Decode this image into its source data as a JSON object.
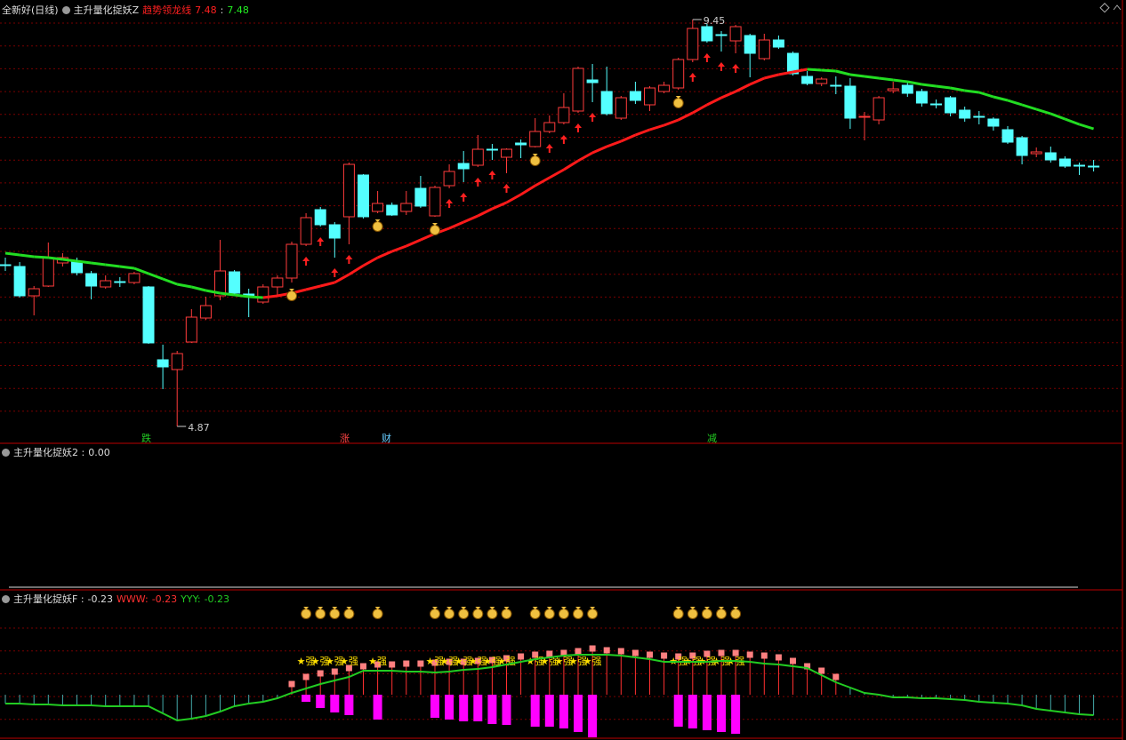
{
  "chart_data": [
    {
      "type": "candlestick",
      "title": "全新好(日线)",
      "indicator": "主升量化捉妖Z",
      "open": [
        6.69,
        6.67,
        6.34,
        6.45,
        6.71,
        6.73,
        6.59,
        6.44,
        6.5,
        6.49,
        6.44,
        5.62,
        5.51,
        5.82,
        6.09,
        6.34,
        6.61,
        6.36,
        6.27,
        6.44,
        6.54,
        6.92,
        7.31,
        7.14,
        7.23,
        7.7,
        7.29,
        7.36,
        7.29,
        7.55,
        7.24,
        7.58,
        7.83,
        7.81,
        7.99,
        7.9,
        8.06,
        8.02,
        8.19,
        8.29,
        8.42,
        8.77,
        8.64,
        8.34,
        8.64,
        8.49,
        8.64,
        8.68,
        9.0,
        9.37,
        9.28,
        9.21,
        9.27,
        9.01,
        9.22,
        9.07,
        8.81,
        8.73,
        8.71,
        8.7,
        8.35,
        8.32,
        8.65,
        8.71,
        8.64,
        8.5,
        8.57,
        8.43,
        8.36,
        8.33,
        8.21,
        8.12,
        7.94,
        7.95,
        7.88,
        7.81,
        7.8
      ],
      "high": [
        6.77,
        6.72,
        6.45,
        6.94,
        6.82,
        6.77,
        6.62,
        6.57,
        6.55,
        6.61,
        6.45,
        5.79,
        5.72,
        6.19,
        6.33,
        6.97,
        6.63,
        6.42,
        6.47,
        6.57,
        6.95,
        7.27,
        7.34,
        7.17,
        7.84,
        7.71,
        7.52,
        7.39,
        7.52,
        7.69,
        7.58,
        7.82,
        7.97,
        8.15,
        8.05,
        8.0,
        8.1,
        8.34,
        8.37,
        8.62,
        8.92,
        8.95,
        8.92,
        8.59,
        8.75,
        8.7,
        8.75,
        9.02,
        9.45,
        9.4,
        9.32,
        9.39,
        9.29,
        9.29,
        9.27,
        9.09,
        8.87,
        8.8,
        8.81,
        8.79,
        8.41,
        8.59,
        8.75,
        8.75,
        8.67,
        8.55,
        8.59,
        8.47,
        8.42,
        8.35,
        8.25,
        8.14,
        8.01,
        8.02,
        7.91,
        7.84,
        7.87
      ],
      "low": [
        6.62,
        6.32,
        6.12,
        6.44,
        6.67,
        6.57,
        6.3,
        6.42,
        6.44,
        6.47,
        5.8,
        5.29,
        4.87,
        5.81,
        6.07,
        6.29,
        6.35,
        6.1,
        6.25,
        6.33,
        6.49,
        6.9,
        7.12,
        6.77,
        6.92,
        7.21,
        7.27,
        7.24,
        7.25,
        7.33,
        7.23,
        7.55,
        7.62,
        7.79,
        7.87,
        7.72,
        7.89,
        8.01,
        8.17,
        8.27,
        8.4,
        8.52,
        8.37,
        8.32,
        8.5,
        8.42,
        8.62,
        8.66,
        8.97,
        9.19,
        9.09,
        9.07,
        8.8,
        8.99,
        9.12,
        8.82,
        8.71,
        8.7,
        8.61,
        8.22,
        8.09,
        8.27,
        8.62,
        8.58,
        8.47,
        8.45,
        8.36,
        8.3,
        8.27,
        8.2,
        8.05,
        7.82,
        7.9,
        7.84,
        7.78,
        7.7,
        7.74
      ],
      "close": [
        6.69,
        6.34,
        6.42,
        6.77,
        6.77,
        6.6,
        6.45,
        6.51,
        6.5,
        6.59,
        5.81,
        5.54,
        5.69,
        6.1,
        6.23,
        6.62,
        6.37,
        6.33,
        6.44,
        6.54,
        6.92,
        7.22,
        7.14,
        6.99,
        7.82,
        7.23,
        7.38,
        7.25,
        7.38,
        7.35,
        7.56,
        7.74,
        7.77,
        7.99,
        7.99,
        7.99,
        8.04,
        8.19,
        8.29,
        8.46,
        8.9,
        8.74,
        8.39,
        8.57,
        8.54,
        8.68,
        8.71,
        9.0,
        9.35,
        9.21,
        9.28,
        9.37,
        9.07,
        9.22,
        9.14,
        8.84,
        8.73,
        8.78,
        8.71,
        8.34,
        8.36,
        8.57,
        8.67,
        8.62,
        8.51,
        8.5,
        8.4,
        8.34,
        8.36,
        8.25,
        8.07,
        7.92,
        7.96,
        7.87,
        7.8,
        7.81,
        7.8
      ],
      "up_color": "#ff3b3b",
      "down_color": "#54ffff",
      "series": [
        {
          "name": "趋势领龙线",
          "up_color": "#ff1a1a",
          "down_color": "#22dd22",
          "readout": [
            7.48,
            7.48
          ],
          "values": [
            6.82,
            6.8,
            6.78,
            6.77,
            6.75,
            6.73,
            6.71,
            6.69,
            6.67,
            6.65,
            6.59,
            6.53,
            6.47,
            6.44,
            6.4,
            6.37,
            6.35,
            6.33,
            6.32,
            6.34,
            6.37,
            6.41,
            6.45,
            6.49,
            6.58,
            6.68,
            6.77,
            6.84,
            6.9,
            6.97,
            7.04,
            7.1,
            7.17,
            7.24,
            7.32,
            7.39,
            7.48,
            7.58,
            7.67,
            7.76,
            7.86,
            7.95,
            8.02,
            8.08,
            8.15,
            8.21,
            8.26,
            8.32,
            8.4,
            8.49,
            8.57,
            8.64,
            8.72,
            8.79,
            8.83,
            8.86,
            8.89,
            8.88,
            8.87,
            8.83,
            8.81,
            8.79,
            8.77,
            8.75,
            8.72,
            8.7,
            8.68,
            8.65,
            8.63,
            8.58,
            8.54,
            8.49,
            8.44,
            8.39,
            8.33,
            8.27,
            8.22
          ]
        }
      ],
      "separator": ":",
      "signals": [
        "跌",
        "涨",
        "财",
        "减"
      ],
      "ylim": [
        4.7,
        9.67
      ]
    },
    {
      "type": "indicator",
      "title": "主升量化捉妖2 :",
      "value": 0,
      "value_label": "0.00"
    },
    {
      "type": "oscillator",
      "title": "主升量化捉妖F :",
      "readout": -0.23,
      "strong_label": "★强",
      "ylim": [
        -0.5,
        1.15
      ],
      "bars": {
        "color": "#ff00ff",
        "values": [
          null,
          null,
          null,
          null,
          null,
          null,
          null,
          null,
          null,
          null,
          null,
          null,
          null,
          null,
          null,
          null,
          null,
          null,
          null,
          null,
          null,
          -0.08,
          -0.15,
          -0.2,
          -0.23,
          null,
          -0.28,
          null,
          null,
          null,
          -0.26,
          -0.28,
          -0.3,
          -0.3,
          -0.33,
          -0.34,
          null,
          -0.36,
          -0.36,
          -0.38,
          -0.42,
          -0.48,
          null,
          null,
          null,
          null,
          null,
          -0.36,
          -0.38,
          -0.4,
          -0.42,
          -0.44,
          null,
          null,
          null,
          null,
          null,
          null,
          null,
          null,
          null,
          null,
          null,
          null,
          null,
          null,
          null,
          null,
          null,
          null,
          null,
          null,
          null,
          null,
          null,
          null,
          null
        ]
      },
      "series": [
        {
          "name": "WWW:",
          "color": "#ff3030",
          "marker_color": "#ff8080",
          "readout": -0.23,
          "values": [
            null,
            null,
            null,
            null,
            null,
            null,
            null,
            null,
            null,
            null,
            null,
            null,
            null,
            null,
            null,
            null,
            null,
            null,
            null,
            null,
            0.12,
            0.2,
            0.24,
            0.26,
            0.3,
            0.32,
            0.34,
            0.34,
            0.35,
            0.35,
            0.36,
            0.37,
            0.37,
            0.38,
            0.39,
            0.41,
            0.43,
            0.45,
            0.46,
            0.47,
            0.49,
            0.52,
            0.5,
            0.49,
            0.47,
            0.45,
            0.44,
            0.43,
            0.44,
            0.46,
            0.47,
            0.47,
            0.45,
            0.44,
            0.42,
            0.38,
            0.32,
            0.27,
            0.2,
            null,
            null,
            null,
            null,
            null,
            null,
            null,
            null,
            null,
            null,
            null,
            null,
            null,
            null,
            null,
            null,
            null,
            null
          ]
        },
        {
          "name": "YYY:",
          "color": "#22cc22",
          "readout": -0.23,
          "values": [
            -0.1,
            -0.1,
            -0.11,
            -0.11,
            -0.12,
            -0.12,
            -0.12,
            -0.13,
            -0.13,
            -0.13,
            -0.13,
            -0.21,
            -0.29,
            -0.27,
            -0.24,
            -0.19,
            -0.13,
            -0.1,
            -0.08,
            -0.04,
            0.02,
            0.07,
            0.12,
            0.16,
            0.2,
            0.27,
            0.27,
            0.27,
            0.26,
            0.26,
            0.25,
            0.26,
            0.28,
            0.29,
            0.31,
            0.34,
            0.37,
            0.4,
            0.42,
            0.44,
            0.45,
            0.45,
            0.45,
            0.44,
            0.42,
            0.4,
            0.37,
            0.37,
            0.37,
            0.37,
            0.38,
            0.38,
            0.37,
            0.35,
            0.34,
            0.32,
            0.3,
            0.22,
            0.14,
            0.08,
            0.02,
            0.0,
            -0.03,
            -0.03,
            -0.04,
            -0.04,
            -0.05,
            -0.06,
            -0.08,
            -0.09,
            -0.1,
            -0.12,
            -0.16,
            -0.18,
            -0.2,
            -0.22,
            -0.23
          ]
        }
      ]
    }
  ]
}
